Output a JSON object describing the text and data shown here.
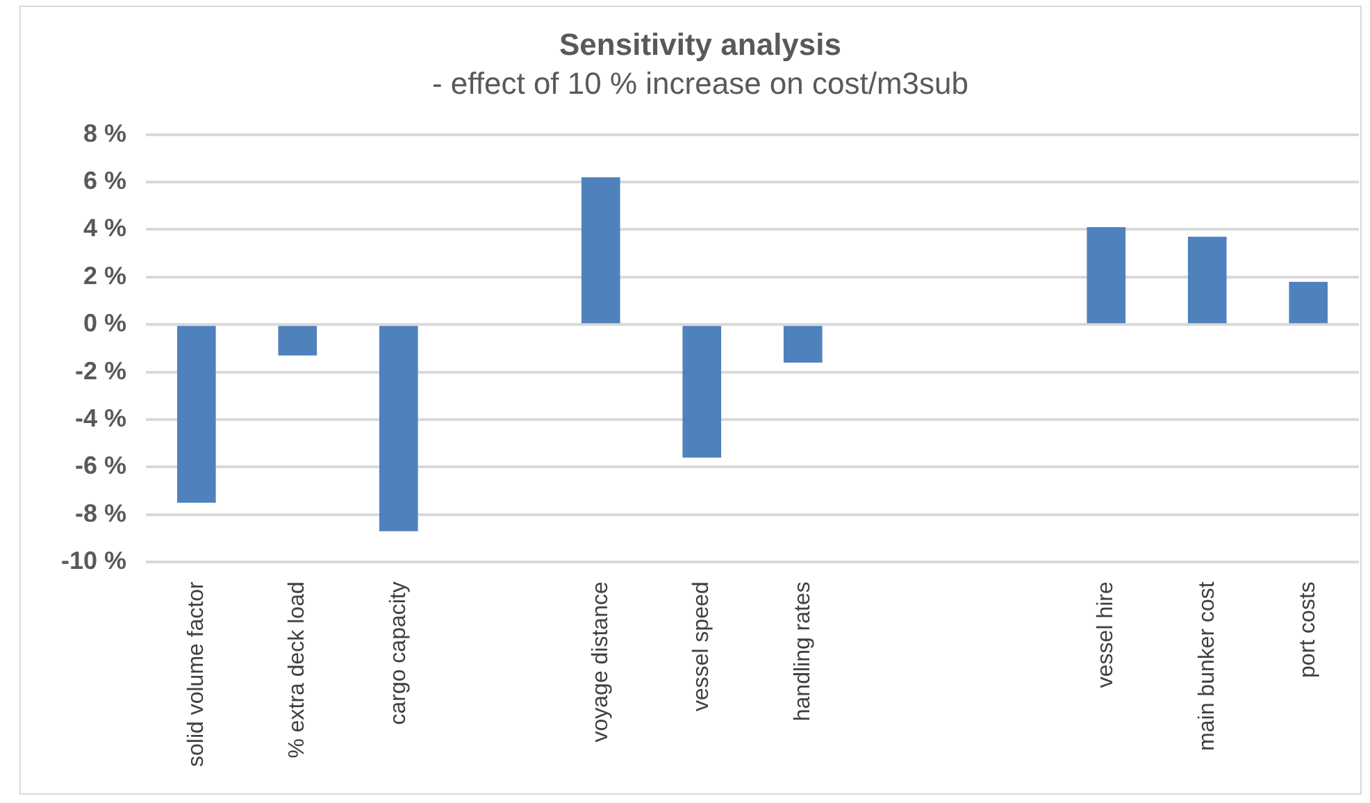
{
  "chart_data": {
    "type": "bar",
    "title": "Sensitivity analysis",
    "subtitle": "- effect of 10 % increase on cost/m3sub",
    "categories": [
      "solid volume factor",
      "% extra deck load",
      "cargo capacity",
      null,
      "voyage distance",
      "vessel speed",
      "handling rates",
      null,
      null,
      "vessel hire",
      "main bunker cost",
      "port costs"
    ],
    "values": [
      -7.5,
      -1.3,
      -8.7,
      null,
      6.2,
      -5.6,
      -1.6,
      null,
      null,
      4.1,
      3.7,
      1.8
    ],
    "color": "#4f81bd",
    "ylim": [
      -10,
      8
    ],
    "yticks": [
      {
        "value": -10,
        "label": "-10 %"
      },
      {
        "value": -8,
        "label": "-8 %"
      },
      {
        "value": -6,
        "label": "-6 %"
      },
      {
        "value": -4,
        "label": "-4 %"
      },
      {
        "value": -2,
        "label": "-2 %"
      },
      {
        "value": 0,
        "label": "0 %"
      },
      {
        "value": 2,
        "label": "2 %"
      },
      {
        "value": 4,
        "label": "4 %"
      },
      {
        "value": 6,
        "label": "6 %"
      },
      {
        "value": 8,
        "label": "8 %"
      }
    ],
    "grid": "y",
    "legend": false
  }
}
